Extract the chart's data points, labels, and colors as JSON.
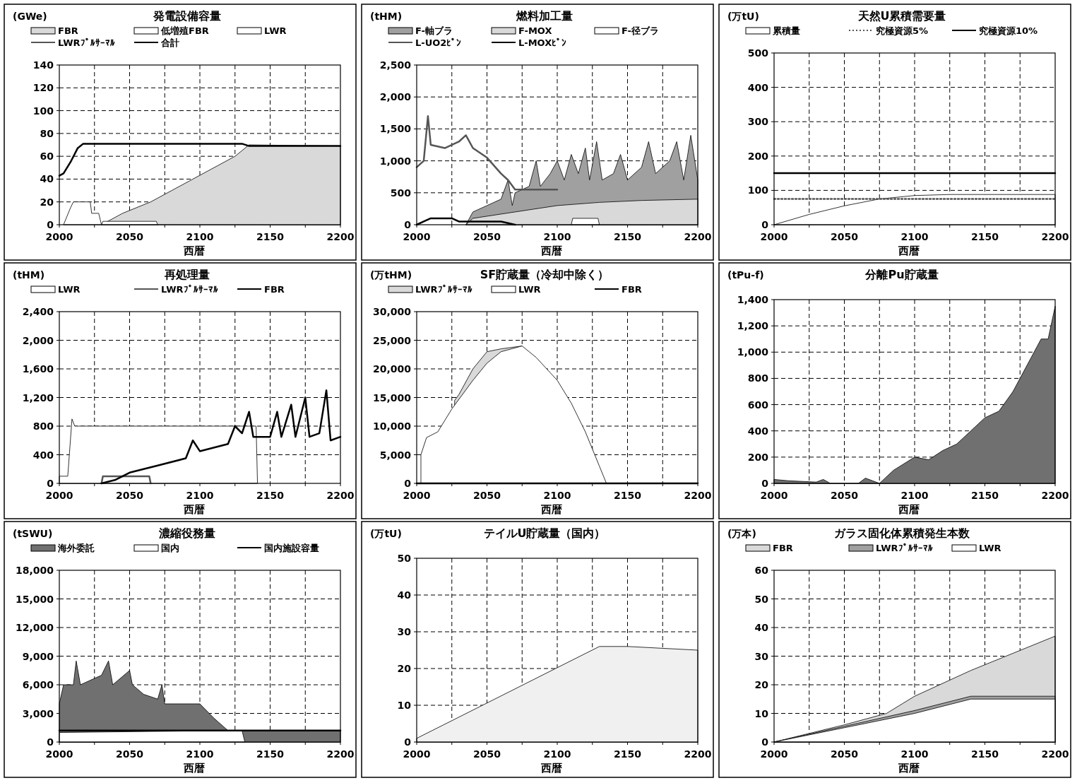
{
  "chart_data": [
    {
      "type": "area",
      "title": "発電設備容量",
      "ylabel": "(GWe)",
      "xlabel": "西暦",
      "xlim": [
        2000,
        2200
      ],
      "xticks": [
        2000,
        {
          "value": 2025,
          "label": null
        },
        2050,
        {
          "value": 2075,
          "label": null
        },
        2100,
        {
          "value": 2125,
          "label": null
        },
        2150,
        {
          "value": 2175,
          "label": null
        },
        2200
      ],
      "ylim": [
        0,
        140
      ],
      "yticks": [
        0,
        20,
        40,
        60,
        80,
        100,
        120,
        140
      ],
      "grid": true,
      "legend": "top",
      "series": [
        {
          "name": "FBR",
          "type": "area",
          "color": "#d9d9d9",
          "x": [
            2030,
            2045,
            2065,
            2080,
            2095,
            2110,
            2125,
            2135,
            2200
          ],
          "values": [
            0,
            10,
            20,
            30,
            40,
            50,
            60,
            70,
            69
          ]
        },
        {
          "name": "低増殖FBR",
          "type": "area",
          "color": "#ffffff",
          "x": [
            2003,
            2008,
            2010,
            2022,
            2023,
            2028,
            2030
          ],
          "values": [
            0,
            15,
            20,
            20,
            10,
            10,
            0
          ]
        },
        {
          "name": "LWR",
          "type": "area",
          "color": "#ffffff",
          "x": [
            2030,
            2031,
            2069,
            2070
          ],
          "values": [
            0,
            3,
            3,
            0
          ]
        },
        {
          "name": "LWRﾌﾟﾙｻｰﾏﾙ",
          "type": "line",
          "color": "#555555"
        },
        {
          "name": "合計",
          "type": "line",
          "color": "#000000",
          "x": [
            2000,
            2003,
            2008,
            2013,
            2017,
            2130,
            2135,
            2200
          ],
          "values": [
            43,
            45,
            55,
            67,
            71,
            71,
            69,
            69
          ]
        }
      ]
    },
    {
      "type": "area",
      "title": "燃料加工量",
      "ylabel": "(tHM)",
      "xlabel": "西暦",
      "xlim": [
        2000,
        2200
      ],
      "xticks": [
        2000,
        {
          "value": 2025,
          "label": null
        },
        2050,
        {
          "value": 2075,
          "label": null
        },
        2100,
        {
          "value": 2125,
          "label": null
        },
        2150,
        {
          "value": 2175,
          "label": null
        },
        2200
      ],
      "ylim": [
        0,
        2500
      ],
      "yticks": [
        0,
        500,
        {
          "value": 1000,
          "label": "1,000"
        },
        {
          "value": 1500,
          "label": "1,500"
        },
        {
          "value": 2000,
          "label": "2,000"
        },
        {
          "value": 2500,
          "label": "2,500"
        }
      ],
      "grid": true,
      "legend": "top",
      "series": [
        {
          "name": "F-軸ブラ",
          "type": "area",
          "color": "#a0a0a0",
          "x": [
            2035,
            2040,
            2050,
            2060,
            2065,
            2068,
            2070,
            2080,
            2085,
            2088,
            2095,
            2100,
            2105,
            2110,
            2115,
            2120,
            2123,
            2128,
            2132,
            2140,
            2145,
            2150,
            2160,
            2165,
            2170,
            2180,
            2185,
            2190,
            2195,
            2200
          ],
          "values": [
            0,
            200,
            300,
            400,
            700,
            300,
            500,
            600,
            1000,
            600,
            800,
            1000,
            700,
            1100,
            800,
            1200,
            700,
            1300,
            700,
            800,
            1100,
            700,
            900,
            1300,
            800,
            1000,
            1300,
            700,
            1400,
            700
          ]
        },
        {
          "name": "F-MOX",
          "type": "area",
          "color": "#d9d9d9",
          "x": [
            2035,
            2040,
            2070,
            2100,
            2130,
            2160,
            2200
          ],
          "values": [
            0,
            100,
            200,
            300,
            350,
            380,
            400
          ]
        },
        {
          "name": "F-径ブラ",
          "type": "area",
          "color": "#ffffff",
          "x": [
            2110,
            2111,
            2129,
            2130
          ],
          "values": [
            0,
            100,
            100,
            0
          ]
        },
        {
          "name": "L-UO2ﾋﾟﾝ",
          "type": "line",
          "color": "#555555",
          "x": [
            2000,
            2005,
            2008,
            2010,
            2020,
            2030,
            2035,
            2040,
            2050,
            2060,
            2065,
            2070,
            2100
          ],
          "values": [
            900,
            1000,
            1700,
            1250,
            1200,
            1300,
            1400,
            1200,
            1050,
            800,
            700,
            550,
            550
          ]
        },
        {
          "name": "L-MOXﾋﾟﾝ",
          "type": "line",
          "color": "#000000",
          "x": [
            2000,
            2005,
            2010,
            2025,
            2030,
            2060,
            2070
          ],
          "values": [
            0,
            50,
            100,
            100,
            50,
            50,
            0
          ]
        }
      ]
    },
    {
      "type": "area",
      "title": "天然U累積需要量",
      "ylabel": "(万tU)",
      "xlabel": "西暦",
      "xlim": [
        2000,
        2200
      ],
      "xticks": [
        2000,
        {
          "value": 2025,
          "label": null
        },
        2050,
        {
          "value": 2075,
          "label": null
        },
        2100,
        {
          "value": 2125,
          "label": null
        },
        2150,
        {
          "value": 2175,
          "label": null
        },
        2200
      ],
      "ylim": [
        0,
        500
      ],
      "yticks": [
        0,
        100,
        200,
        300,
        400,
        500
      ],
      "grid": true,
      "legend": "top",
      "series": [
        {
          "name": "累積量",
          "type": "area",
          "color": "#ffffff",
          "x": [
            2000,
            2025,
            2050,
            2075,
            2100,
            2125,
            2200
          ],
          "values": [
            0,
            30,
            55,
            75,
            85,
            88,
            88
          ]
        },
        {
          "name": "究極資源5%",
          "type": "line",
          "color": "#555555",
          "line_style": "dotted",
          "x": [
            2000,
            2200
          ],
          "values": [
            75,
            75
          ]
        },
        {
          "name": "究極資源10%",
          "type": "line",
          "color": "#000000",
          "x": [
            2000,
            2200
          ],
          "values": [
            150,
            150
          ]
        }
      ]
    },
    {
      "type": "area",
      "title": "再処理量",
      "ylabel": "(tHM)",
      "xlabel": "西暦",
      "xlim": [
        2000,
        2200
      ],
      "xticks": [
        2000,
        {
          "value": 2025,
          "label": null
        },
        2050,
        {
          "value": 2075,
          "label": null
        },
        2100,
        {
          "value": 2125,
          "label": null
        },
        2150,
        {
          "value": 2175,
          "label": null
        },
        2200
      ],
      "ylim": [
        0,
        2400
      ],
      "yticks": [
        0,
        400,
        800,
        {
          "value": 1200,
          "label": "1,200"
        },
        {
          "value": 1600,
          "label": "1,600"
        },
        {
          "value": 2000,
          "label": "2,000"
        },
        {
          "value": 2400,
          "label": "2,400"
        }
      ],
      "grid": true,
      "legend": "top",
      "series": [
        {
          "name": "LWR",
          "type": "area",
          "color": "#ffffff",
          "x": [
            2000,
            2006,
            2009,
            2011,
            2140,
            2141
          ],
          "values": [
            100,
            100,
            900,
            800,
            800,
            0
          ]
        },
        {
          "name": "LWRﾌﾟﾙｻｰﾏﾙ",
          "type": "line",
          "color": "#555555",
          "x": [
            2030,
            2031,
            2064,
            2065
          ],
          "values": [
            0,
            100,
            100,
            0
          ]
        },
        {
          "name": "FBR",
          "type": "line",
          "color": "#000000",
          "x": [
            2030,
            2040,
            2050,
            2070,
            2090,
            2095,
            2100,
            2120,
            2125,
            2130,
            2135,
            2138,
            2150,
            2155,
            2158,
            2165,
            2168,
            2175,
            2178,
            2185,
            2190,
            2193,
            2200
          ],
          "values": [
            0,
            50,
            150,
            250,
            350,
            600,
            450,
            550,
            800,
            700,
            1000,
            650,
            650,
            1000,
            650,
            1100,
            650,
            1200,
            650,
            700,
            1300,
            600,
            650
          ]
        }
      ]
    },
    {
      "type": "area",
      "title": "SF貯蔵量（冷却中除く）",
      "ylabel": "(万tHM)",
      "xlabel": "西暦",
      "xlim": [
        2000,
        2200
      ],
      "xticks": [
        2000,
        {
          "value": 2025,
          "label": null
        },
        2050,
        {
          "value": 2075,
          "label": null
        },
        2100,
        {
          "value": 2125,
          "label": null
        },
        2150,
        {
          "value": 2175,
          "label": null
        },
        2200
      ],
      "ylim": [
        0,
        30000
      ],
      "yticks": [
        0,
        {
          "value": 5000,
          "label": "5,000"
        },
        {
          "value": 10000,
          "label": "10,000"
        },
        {
          "value": 15000,
          "label": "15,000"
        },
        {
          "value": 20000,
          "label": "20,000"
        },
        {
          "value": 25000,
          "label": "25,000"
        },
        {
          "value": 30000,
          "label": "30,000"
        }
      ],
      "grid": true,
      "legend": "top",
      "series": [
        {
          "name": "LWRﾌﾟﾙｻｰﾏﾙ",
          "type": "area",
          "color": "#d9d9d9",
          "x": [
            2027,
            2030,
            2040,
            2050,
            2060,
            2075
          ],
          "values": [
            14500,
            15500,
            20000,
            23000,
            23500,
            24000
          ]
        },
        {
          "name": "LWR",
          "type": "area",
          "color": "#ffffff",
          "x": [
            2003,
            2007,
            2015,
            2025,
            2040,
            2050,
            2060,
            2075,
            2085,
            2100,
            2110,
            2120,
            2130,
            2135
          ],
          "values": [
            5000,
            8000,
            9000,
            13000,
            18000,
            21000,
            23000,
            24000,
            22000,
            18000,
            14000,
            9000,
            3000,
            0
          ]
        },
        {
          "name": "FBR",
          "type": "line",
          "color": "#000000",
          "x": [
            2000,
            2200
          ],
          "values": [
            0,
            0
          ]
        }
      ]
    },
    {
      "type": "area",
      "title": "分離Pu貯蔵量",
      "ylabel": "(tPu-f)",
      "xlabel": "西暦",
      "xlim": [
        2000,
        2200
      ],
      "xticks": [
        2000,
        {
          "value": 2025,
          "label": null
        },
        2050,
        {
          "value": 2075,
          "label": null
        },
        2100,
        {
          "value": 2125,
          "label": null
        },
        2150,
        {
          "value": 2175,
          "label": null
        },
        2200
      ],
      "ylim": [
        0,
        1400
      ],
      "yticks": [
        0,
        200,
        400,
        600,
        800,
        {
          "value": 1000,
          "label": "1,000"
        },
        {
          "value": 1200,
          "label": "1,200"
        },
        {
          "value": 1400,
          "label": "1,400"
        }
      ],
      "grid": true,
      "series": [
        {
          "type": "area",
          "color": "#707070",
          "x": [
            2000,
            2010,
            2030,
            2035,
            2040,
            2060,
            2065,
            2070,
            2075,
            2085,
            2100,
            2110,
            2120,
            2130,
            2140,
            2150,
            2160,
            2170,
            2180,
            2190,
            2195,
            2200
          ],
          "values": [
            30,
            20,
            10,
            30,
            0,
            0,
            40,
            20,
            0,
            100,
            200,
            180,
            250,
            300,
            400,
            500,
            550,
            700,
            900,
            1100,
            1100,
            1350
          ]
        }
      ]
    },
    {
      "type": "area",
      "title": "濃縮役務量",
      "ylabel": "(tSWU)",
      "xlabel": "西暦",
      "xlim": [
        2000,
        2200
      ],
      "xticks": [
        2000,
        {
          "value": 2025,
          "label": null
        },
        2050,
        {
          "value": 2075,
          "label": null
        },
        2100,
        {
          "value": 2125,
          "label": null
        },
        2150,
        {
          "value": 2175,
          "label": null
        },
        2200
      ],
      "ylim": [
        0,
        18000
      ],
      "yticks": [
        0,
        {
          "value": 3000,
          "label": "3,000"
        },
        {
          "value": 6000,
          "label": "6,000"
        },
        {
          "value": 9000,
          "label": "9,000"
        },
        {
          "value": 12000,
          "label": "12,000"
        },
        {
          "value": 15000,
          "label": "15,000"
        },
        {
          "value": 18000,
          "label": "18,000"
        }
      ],
      "grid": true,
      "legend": "top",
      "series": [
        {
          "name": "海外委託",
          "type": "area",
          "color": "#707070",
          "x": [
            2000,
            2003,
            2010,
            2012,
            2015,
            2030,
            2035,
            2038,
            2050,
            2052,
            2060,
            2070,
            2073,
            2075,
            2100,
            2110,
            2120,
            2200
          ],
          "values": [
            4000,
            6000,
            6000,
            8500,
            6000,
            7000,
            8500,
            6000,
            7500,
            6000,
            5000,
            4500,
            6000,
            4000,
            4000,
            2500,
            1200,
            1200
          ]
        },
        {
          "name": "国内",
          "type": "area",
          "color": "#ffffff",
          "x": [
            2000,
            2120,
            2130,
            2132
          ],
          "values": [
            1000,
            1200,
            1200,
            0
          ]
        },
        {
          "name": "国内施設容量",
          "type": "line",
          "color": "#000000",
          "x": [
            2000,
            2200
          ],
          "values": [
            1200,
            1200
          ]
        }
      ]
    },
    {
      "type": "area",
      "title": "テイルU貯蔵量（国内）",
      "ylabel": "(万tU)",
      "xlabel": "西暦",
      "xlim": [
        2000,
        2200
      ],
      "xticks": [
        2000,
        {
          "value": 2025,
          "label": null
        },
        2050,
        {
          "value": 2075,
          "label": null
        },
        2100,
        {
          "value": 2125,
          "label": null
        },
        2150,
        {
          "value": 2175,
          "label": null
        },
        2200
      ],
      "ylim": [
        0,
        50
      ],
      "yticks": [
        0,
        10,
        20,
        30,
        40,
        50
      ],
      "grid": true,
      "series": [
        {
          "type": "area",
          "color": "#f0f0f0",
          "x": [
            2000,
            2130,
            2150,
            2200
          ],
          "values": [
            1,
            26,
            26,
            25
          ]
        }
      ]
    },
    {
      "type": "area",
      "title": "ガラス固化体累積発生本数",
      "ylabel": "(万本)",
      "xlabel": "西暦",
      "xlim": [
        2000,
        2200
      ],
      "xticks": [
        2000,
        {
          "value": 2025,
          "label": null
        },
        2050,
        {
          "value": 2075,
          "label": null
        },
        2100,
        {
          "value": 2125,
          "label": null
        },
        2150,
        {
          "value": 2175,
          "label": null
        },
        2200
      ],
      "ylim": [
        0,
        60
      ],
      "yticks": [
        0,
        10,
        20,
        30,
        40,
        50,
        60
      ],
      "grid": true,
      "legend": "top",
      "series": [
        {
          "name": "FBR",
          "type": "area",
          "color": "#d9d9d9",
          "x": [
            2000,
            2050,
            2080,
            2100,
            2140,
            2200
          ],
          "values": [
            0,
            6,
            10,
            16,
            25,
            37
          ]
        },
        {
          "name": "LWRﾌﾟﾙｻｰﾏﾙ",
          "type": "area",
          "color": "#a0a0a0",
          "x": [
            2000,
            2050,
            2100,
            2140,
            2200
          ],
          "values": [
            0,
            5.5,
            11,
            16,
            16
          ]
        },
        {
          "name": "LWR",
          "type": "area",
          "color": "#ffffff",
          "x": [
            2000,
            2050,
            2100,
            2140,
            2200
          ],
          "values": [
            0,
            5,
            10,
            15,
            15
          ]
        }
      ]
    }
  ]
}
